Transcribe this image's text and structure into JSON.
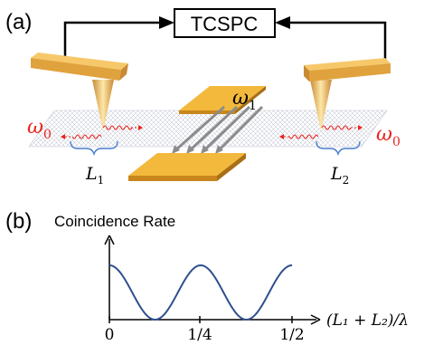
{
  "panel_a": {
    "label": "(a)",
    "box_label": "TCSPC",
    "omega0_left": "ω",
    "omega0_left_sub": "0",
    "omega0_right": "ω",
    "omega0_right_sub": "0",
    "omega1": "ω",
    "omega1_sub": "1",
    "L1": "L",
    "L1_sub": "1",
    "L2": "L",
    "L2_sub": "2"
  },
  "panel_b": {
    "label": "(b)",
    "y_axis_label": "Coincidence Rate",
    "x_axis_label": "(L₁ + L₂)/λ",
    "x_ticks": [
      "0",
      "1/4",
      "1/2"
    ]
  },
  "colors": {
    "gold": "#f0b63a",
    "red": "#e8231e",
    "blue_curve": "#2f4f8f",
    "brace": "#4a7fd0"
  }
}
